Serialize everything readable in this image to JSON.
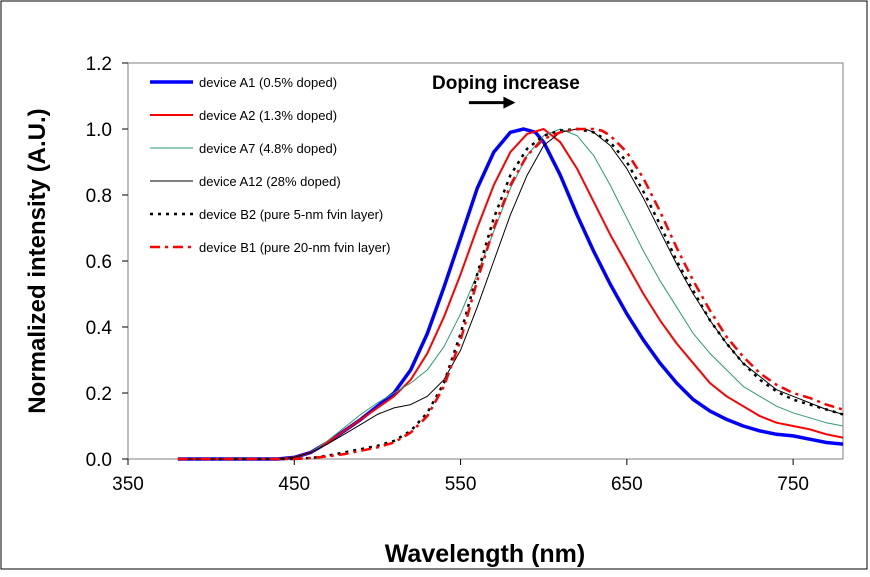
{
  "chart_data": {
    "type": "line",
    "title": "",
    "xlabel": "Wavelength (nm)",
    "ylabel": "Normalized intensity (A.U.)",
    "xlim": [
      350,
      780
    ],
    "ylim": [
      0,
      1.2
    ],
    "xticks": [
      350,
      450,
      550,
      650,
      750
    ],
    "yticks": [
      0.0,
      0.2,
      0.4,
      0.6,
      0.8,
      1.0,
      1.2
    ],
    "ytick_labels": [
      "0.0",
      "0.2",
      "0.4",
      "0.6",
      "0.8",
      "1.0",
      "1.2"
    ],
    "grid": false,
    "legend_position": "top-left",
    "annotation": {
      "text": "Doping increase",
      "arrow": {
        "from": [
          555,
          1.08
        ],
        "to": [
          583,
          1.08
        ]
      }
    },
    "series": [
      {
        "name": "device A1 (0.5% doped)",
        "color": "#0000ff",
        "style": "solid-thick",
        "x": [
          380,
          440,
          450,
          460,
          470,
          480,
          490,
          500,
          510,
          520,
          530,
          540,
          550,
          560,
          570,
          580,
          588,
          595,
          600,
          610,
          620,
          630,
          640,
          650,
          660,
          670,
          680,
          690,
          700,
          710,
          720,
          730,
          740,
          750,
          760,
          770,
          780
        ],
        "y": [
          0.0,
          0.0,
          0.005,
          0.02,
          0.05,
          0.085,
          0.12,
          0.16,
          0.2,
          0.27,
          0.38,
          0.52,
          0.67,
          0.82,
          0.93,
          0.99,
          1.0,
          0.99,
          0.96,
          0.86,
          0.74,
          0.63,
          0.53,
          0.44,
          0.36,
          0.29,
          0.23,
          0.18,
          0.145,
          0.12,
          0.1,
          0.085,
          0.075,
          0.07,
          0.06,
          0.05,
          0.045
        ]
      },
      {
        "name": "device A2 (1.3% doped)",
        "color": "#ff0000",
        "style": "solid",
        "x": [
          380,
          440,
          450,
          460,
          470,
          480,
          490,
          500,
          510,
          520,
          530,
          540,
          550,
          560,
          570,
          580,
          590,
          600,
          610,
          620,
          630,
          640,
          650,
          660,
          670,
          680,
          690,
          700,
          710,
          720,
          730,
          740,
          750,
          760,
          770,
          780
        ],
        "y": [
          0.0,
          0.0,
          0.005,
          0.02,
          0.05,
          0.085,
          0.12,
          0.155,
          0.19,
          0.24,
          0.32,
          0.43,
          0.56,
          0.7,
          0.83,
          0.93,
          0.985,
          1.0,
          0.96,
          0.88,
          0.78,
          0.68,
          0.59,
          0.5,
          0.42,
          0.35,
          0.29,
          0.23,
          0.19,
          0.16,
          0.13,
          0.11,
          0.1,
          0.09,
          0.075,
          0.065
        ]
      },
      {
        "name": "device A7 (4.8% doped)",
        "color": "#2e9a6e",
        "style": "solid-thin",
        "x": [
          380,
          440,
          450,
          460,
          470,
          480,
          490,
          500,
          510,
          520,
          530,
          540,
          550,
          560,
          570,
          580,
          590,
          600,
          610,
          620,
          630,
          640,
          650,
          660,
          670,
          680,
          690,
          700,
          710,
          720,
          730,
          740,
          750,
          760,
          770,
          780
        ],
        "y": [
          0.0,
          0.0,
          0.005,
          0.02,
          0.055,
          0.095,
          0.135,
          0.17,
          0.2,
          0.23,
          0.27,
          0.34,
          0.44,
          0.56,
          0.69,
          0.82,
          0.92,
          0.98,
          1.0,
          0.98,
          0.92,
          0.83,
          0.73,
          0.63,
          0.54,
          0.46,
          0.38,
          0.32,
          0.27,
          0.22,
          0.19,
          0.16,
          0.14,
          0.125,
          0.11,
          0.1
        ]
      },
      {
        "name": "device A12 (28% doped)",
        "color": "#000000",
        "style": "solid-thin",
        "x": [
          380,
          440,
          450,
          460,
          470,
          480,
          490,
          500,
          510,
          520,
          530,
          540,
          550,
          560,
          570,
          580,
          590,
          600,
          610,
          620,
          625,
          630,
          640,
          650,
          660,
          670,
          680,
          690,
          700,
          710,
          720,
          730,
          740,
          750,
          760,
          770,
          780
        ],
        "y": [
          0.0,
          0.0,
          0.005,
          0.02,
          0.045,
          0.075,
          0.105,
          0.135,
          0.155,
          0.165,
          0.19,
          0.24,
          0.33,
          0.46,
          0.6,
          0.74,
          0.86,
          0.95,
          0.99,
          1.0,
          1.0,
          0.99,
          0.95,
          0.88,
          0.79,
          0.69,
          0.59,
          0.5,
          0.42,
          0.35,
          0.29,
          0.25,
          0.21,
          0.19,
          0.17,
          0.15,
          0.135
        ]
      },
      {
        "name": "device B2 (pure 5-nm fvin layer)",
        "color": "#000000",
        "style": "dotted",
        "x": [
          380,
          450,
          460,
          470,
          480,
          490,
          500,
          510,
          520,
          530,
          540,
          550,
          560,
          570,
          580,
          590,
          600,
          610,
          620,
          630,
          640,
          650,
          660,
          670,
          680,
          690,
          700,
          710,
          720,
          730,
          740,
          750,
          760,
          770,
          780
        ],
        "y": [
          0.0,
          0.0,
          0.003,
          0.01,
          0.02,
          0.03,
          0.04,
          0.055,
          0.085,
          0.14,
          0.23,
          0.38,
          0.56,
          0.73,
          0.86,
          0.94,
          0.98,
          0.995,
          1.0,
          0.99,
          0.96,
          0.9,
          0.81,
          0.71,
          0.6,
          0.51,
          0.42,
          0.35,
          0.29,
          0.24,
          0.205,
          0.18,
          0.165,
          0.15,
          0.135
        ]
      },
      {
        "name": "device B1 (pure 20-nm  fvin layer)",
        "color": "#ff0000",
        "style": "dashdot",
        "x": [
          380,
          450,
          460,
          470,
          480,
          490,
          500,
          510,
          520,
          530,
          540,
          550,
          560,
          570,
          580,
          590,
          600,
          610,
          620,
          630,
          635,
          640,
          650,
          660,
          670,
          680,
          690,
          700,
          710,
          720,
          730,
          740,
          750,
          760,
          770,
          780
        ],
        "y": [
          0.0,
          0.0,
          0.003,
          0.008,
          0.015,
          0.025,
          0.035,
          0.05,
          0.08,
          0.13,
          0.22,
          0.36,
          0.54,
          0.7,
          0.83,
          0.92,
          0.97,
          0.99,
          1.0,
          1.0,
          0.995,
          0.98,
          0.93,
          0.85,
          0.75,
          0.64,
          0.54,
          0.45,
          0.37,
          0.31,
          0.26,
          0.225,
          0.2,
          0.185,
          0.165,
          0.15
        ]
      }
    ]
  }
}
